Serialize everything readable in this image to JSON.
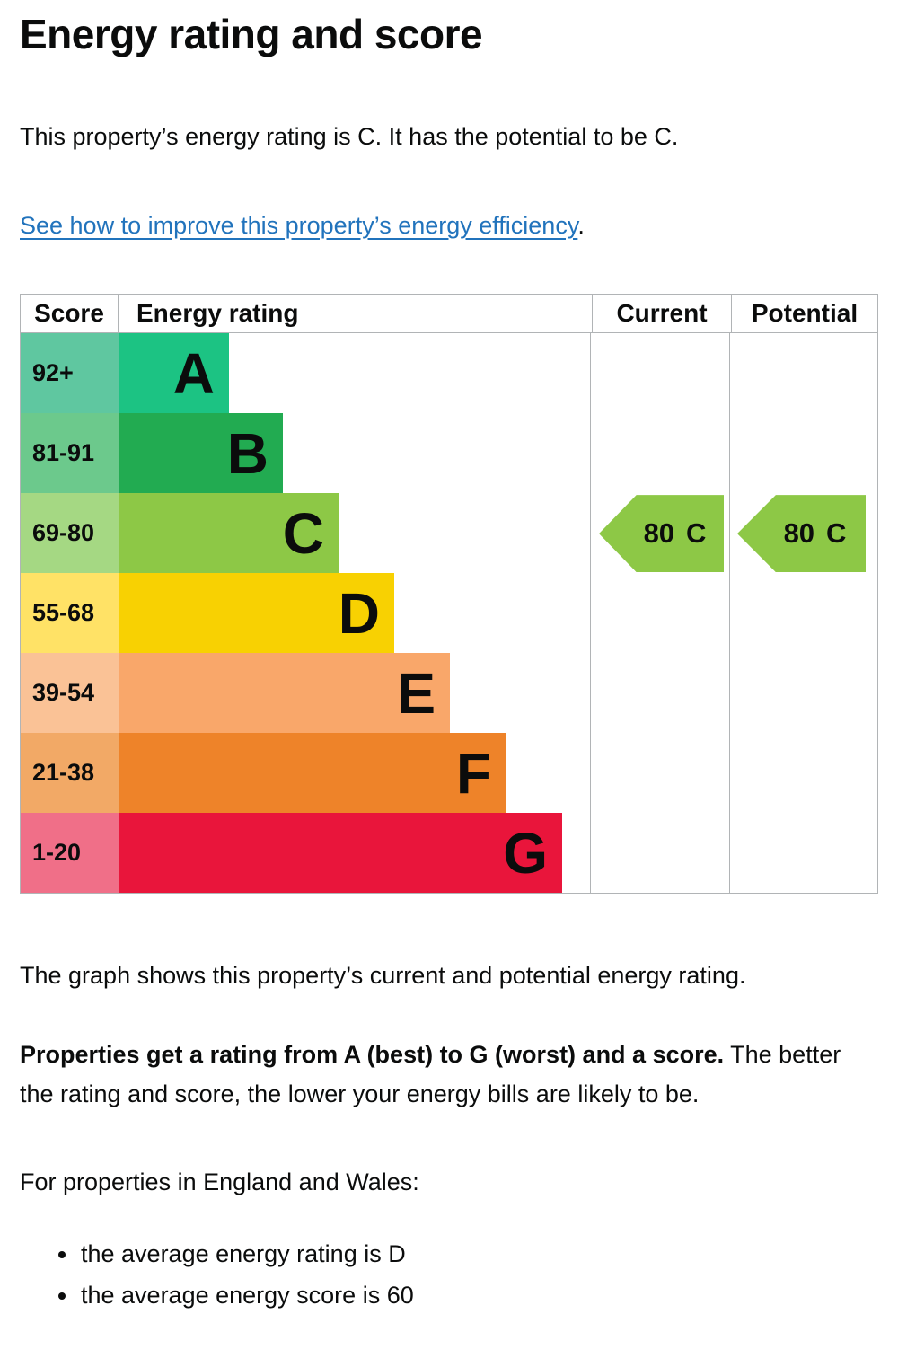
{
  "page": {
    "title": "Energy rating and score",
    "intro": "This property’s energy rating is C. It has the potential to be C.",
    "improve_link": "See how to improve this property’s energy efficiency",
    "improve_link_suffix": ".",
    "graph_caption": "The graph shows this property’s current and potential energy rating.",
    "explain_bold": "Properties get a rating from A (best) to G (worst) and a score.",
    "explain_rest": " The better the rating and score, the lower your energy bills are likely to be.",
    "region_heading": "For properties in England and Wales:",
    "bullets": [
      "the average energy rating is D",
      "the average energy score is 60"
    ]
  },
  "chart": {
    "headers": {
      "score": "Score",
      "rating": "Energy rating",
      "current": "Current",
      "potential": "Potential"
    },
    "bands": [
      {
        "letter": "A",
        "score_range": "92+",
        "width_pct": 23.4,
        "bar_color": "#1cc383",
        "score_color": "#5fc7a0"
      },
      {
        "letter": "B",
        "score_range": "81-91",
        "width_pct": 34.8,
        "bar_color": "#22ab51",
        "score_color": "#6cc98c"
      },
      {
        "letter": "C",
        "score_range": "69-80",
        "width_pct": 46.7,
        "bar_color": "#8dc846",
        "score_color": "#a5d883"
      },
      {
        "letter": "D",
        "score_range": "55-68",
        "width_pct": 58.4,
        "bar_color": "#f8d102",
        "score_color": "#ffe266"
      },
      {
        "letter": "E",
        "score_range": "39-54",
        "width_pct": 70.3,
        "bar_color": "#f9a76a",
        "score_color": "#fac296"
      },
      {
        "letter": "F",
        "score_range": "21-38",
        "width_pct": 82.0,
        "bar_color": "#ee8329",
        "score_color": "#f2a966"
      },
      {
        "letter": "G",
        "score_range": "1-20",
        "width_pct": 94.0,
        "bar_color": "#e9153b",
        "score_color": "#f06f88"
      }
    ],
    "current_marker": {
      "value": "80",
      "letter": "C",
      "color": "#8dc846"
    },
    "potential_marker": {
      "value": "80",
      "letter": "C",
      "color": "#8dc846"
    }
  },
  "colors": {
    "text": "#0b0c0c",
    "link": "#2173bc",
    "border": "#b1b4b6"
  },
  "chart_data": {
    "type": "bar",
    "title": "Energy rating and score",
    "categories": [
      "A",
      "B",
      "C",
      "D",
      "E",
      "F",
      "G"
    ],
    "score_ranges": [
      "92+",
      "81-91",
      "69-80",
      "55-68",
      "39-54",
      "21-38",
      "1-20"
    ],
    "bar_lengths_pct_of_column": [
      23.4,
      34.8,
      46.7,
      58.4,
      70.3,
      82.0,
      94.0
    ],
    "bar_colors": [
      "#1cc383",
      "#22ab51",
      "#8dc846",
      "#f8d102",
      "#f9a76a",
      "#ee8329",
      "#e9153b"
    ],
    "columns": [
      "Score",
      "Energy rating",
      "Current",
      "Potential"
    ],
    "markers": {
      "current": {
        "score": 80,
        "rating": "C"
      },
      "potential": {
        "score": 80,
        "rating": "C"
      }
    },
    "legend_position": "none",
    "grid": false
  }
}
